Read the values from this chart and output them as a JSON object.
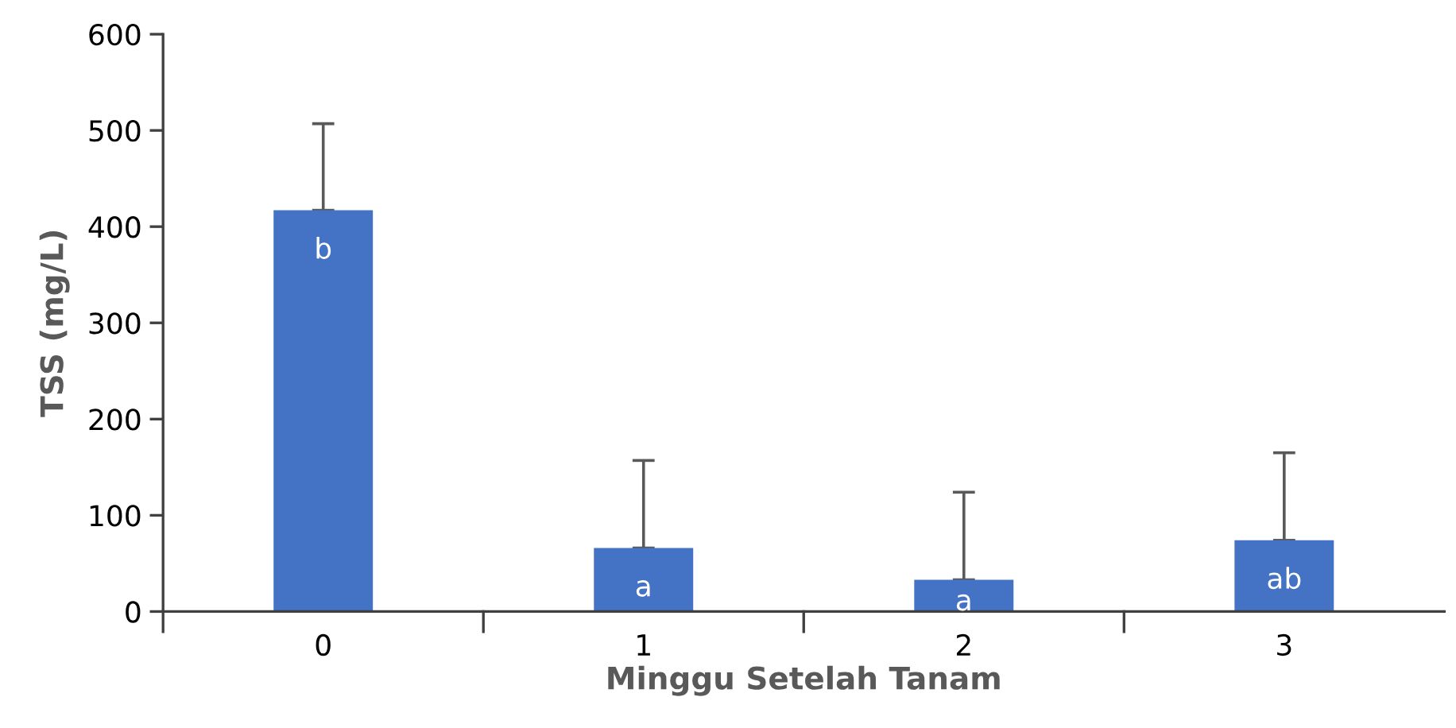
{
  "chart_data": {
    "type": "bar",
    "xlabel": "Minggu Setelah Tanam",
    "ylabel": "TSS (mg/L)",
    "categories": [
      "0",
      "1",
      "2",
      "3"
    ],
    "values": [
      417,
      66,
      33,
      74
    ],
    "errors": [
      [
        417,
        507
      ],
      [
        66,
        157
      ],
      [
        33,
        124
      ],
      [
        74,
        165
      ]
    ],
    "color": "#4472c4",
    "ylim": [
      0,
      600
    ],
    "yticks": [
      0,
      100,
      200,
      300,
      400,
      500,
      600
    ],
    "grid": false,
    "annotations": [
      {
        "text": "b",
        "x": "0",
        "y": 417
      },
      {
        "text": "a",
        "x": "1",
        "y": 66
      },
      {
        "text": "a",
        "x": "2",
        "y": 33
      },
      {
        "text": "ab",
        "x": "3",
        "y": 74
      }
    ]
  }
}
